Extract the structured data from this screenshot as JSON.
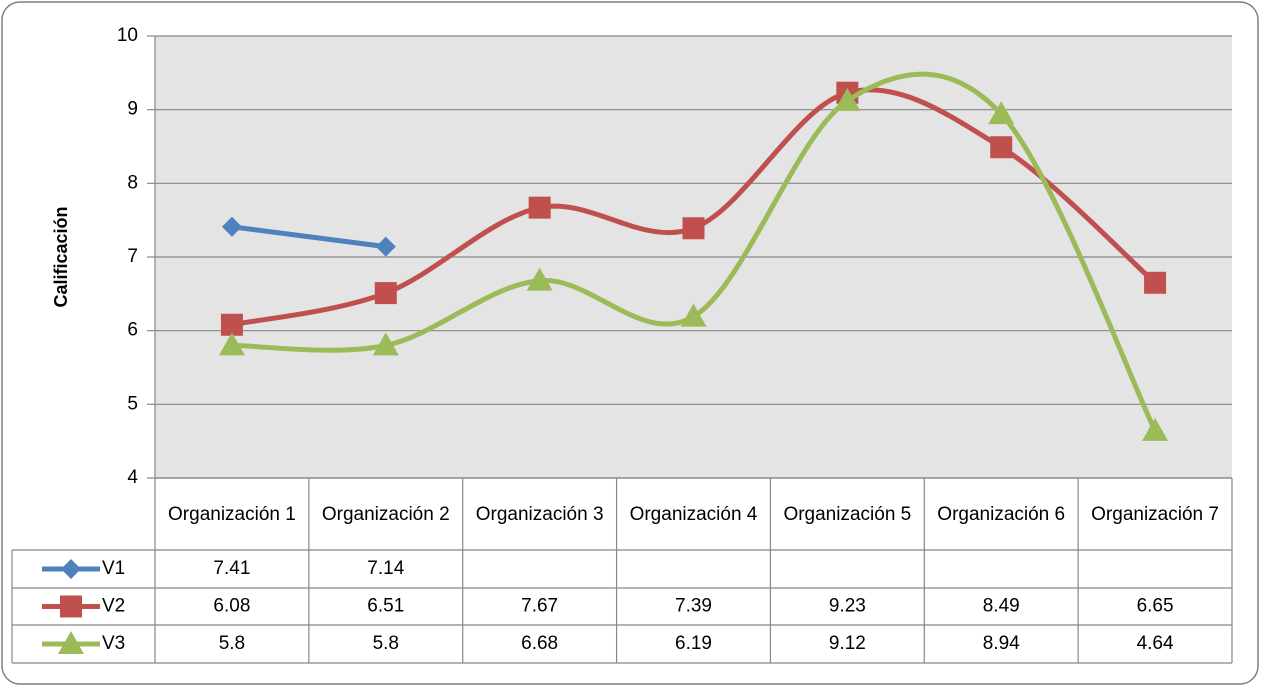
{
  "chart_data": {
    "type": "line",
    "y_label": "Calificación",
    "categories": [
      "Organización 1",
      "Organización 2",
      "Organización 3",
      "Organización 4",
      "Organización 5",
      "Organización 6",
      "Organización 7"
    ],
    "series": [
      {
        "name": "V1",
        "color": "#4f81bd",
        "marker": "diamond",
        "smooth": false,
        "values": [
          7.41,
          7.14,
          null,
          null,
          null,
          null,
          null
        ]
      },
      {
        "name": "V2",
        "color": "#c0504d",
        "marker": "square",
        "smooth": true,
        "values": [
          6.08,
          6.51,
          7.67,
          7.39,
          9.23,
          8.49,
          6.65
        ]
      },
      {
        "name": "V3",
        "color": "#9bbb59",
        "marker": "triangle",
        "smooth": true,
        "values": [
          5.8,
          5.8,
          6.68,
          6.19,
          9.12,
          8.94,
          4.64
        ]
      }
    ],
    "ylim": [
      4,
      10
    ],
    "yticks": [
      4,
      5,
      6,
      7,
      8,
      9,
      10
    ],
    "grid": true,
    "data_table": true
  }
}
